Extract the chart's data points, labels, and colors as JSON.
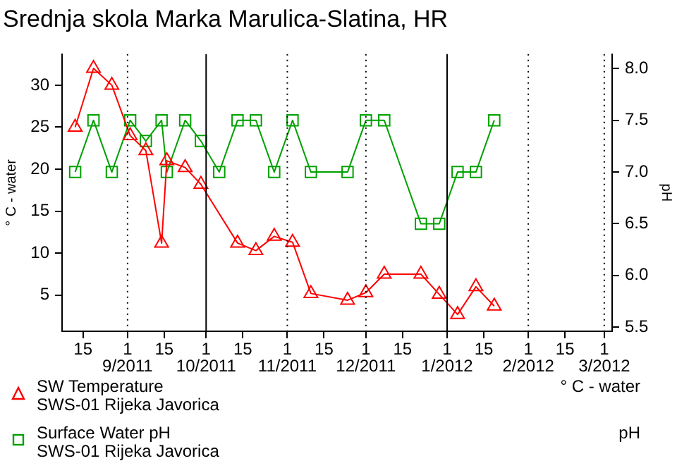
{
  "chart_data": {
    "type": "line",
    "title": "Srednja skola Marka Marulica-Slatina, HR",
    "ylabel": "° C - water",
    "y2label": "pH",
    "xlim": [
      "2011-08-07",
      "2012-03-04"
    ],
    "xticks": [
      {
        "value": "2011-08-15",
        "label": "15"
      },
      {
        "value": "2011-09-01",
        "label": "1\n9/2011"
      },
      {
        "value": "2011-09-15",
        "label": "15"
      },
      {
        "value": "2011-10-01",
        "label": "1\n10/2011"
      },
      {
        "value": "2011-10-15",
        "label": "15"
      },
      {
        "value": "2011-11-01",
        "label": "1\n11/2011"
      },
      {
        "value": "2011-11-15",
        "label": "15"
      },
      {
        "value": "2011-12-01",
        "label": "1\n12/2011"
      },
      {
        "value": "2011-12-15",
        "label": "15"
      },
      {
        "value": "2012-01-01",
        "label": "1\n1/2012"
      },
      {
        "value": "2012-01-15",
        "label": "15"
      },
      {
        "value": "2012-02-01",
        "label": "1\n2/2012"
      },
      {
        "value": "2012-02-15",
        "label": "15"
      },
      {
        "value": "2012-03-01",
        "label": "1\n3/2012"
      }
    ],
    "ylim": [
      0.7,
      33.7
    ],
    "yticks": [
      5,
      10,
      15,
      20,
      25,
      30
    ],
    "y2lim": [
      5.46,
      8.14
    ],
    "y2ticks": [
      {
        "value": 5.5,
        "label": "5.5"
      },
      {
        "value": 6,
        "label": "6.0"
      },
      {
        "value": 6.5,
        "label": "6.5"
      },
      {
        "value": 7,
        "label": "7.0"
      },
      {
        "value": 7.5,
        "label": "7.5"
      },
      {
        "value": 8,
        "label": "8.0"
      }
    ],
    "legend": "bottom",
    "line_style": "solid",
    "ref_lines": [
      {
        "axis": "x",
        "value": "2011-09-01",
        "line_style": "dotted",
        "color": "#000000"
      },
      {
        "axis": "x",
        "value": "2011-10-01",
        "line_style": "solid",
        "color": "#000000"
      },
      {
        "axis": "x",
        "value": "2011-11-01",
        "line_style": "dotted",
        "color": "#000000"
      },
      {
        "axis": "x",
        "value": "2011-12-01",
        "line_style": "dotted",
        "color": "#000000"
      },
      {
        "axis": "x",
        "value": "2012-01-01",
        "line_style": "solid",
        "color": "#000000"
      },
      {
        "axis": "x",
        "value": "2012-02-01",
        "line_style": "dotted",
        "color": "#000000"
      },
      {
        "axis": "x",
        "value": "2012-03-01",
        "line_style": "dotted",
        "color": "#000000"
      }
    ],
    "series": [
      {
        "name": "SW Temperature\nSWS-01 Rijeka Javorica",
        "color": "#ff0000",
        "marker": "triangle",
        "axis": "y",
        "x": [
          "2011-08-12",
          "2011-08-19",
          "2011-08-26",
          "2011-09-02",
          "2011-09-08",
          "2011-09-14",
          "2011-09-16",
          "2011-09-23",
          "2011-09-29",
          "2011-10-13",
          "2011-10-20",
          "2011-10-27",
          "2011-11-03",
          "2011-11-10",
          "2011-11-24",
          "2011-12-01",
          "2011-12-08",
          "2011-12-22",
          "2011-12-29",
          "2012-01-05",
          "2012-01-12",
          "2012-01-19"
        ],
        "values": [
          25,
          32,
          30,
          24,
          22.2,
          11.2,
          21,
          20.2,
          18.2,
          11.2,
          10.3,
          12,
          11.3,
          5.2,
          4.4,
          5.3,
          7.5,
          7.5,
          5.1,
          2.7,
          6,
          3.7
        ]
      },
      {
        "name": "Surface Water pH\nSWS-01 Rijeka Javorica",
        "color": "#00a000",
        "marker": "square",
        "axis": "y2",
        "x": [
          "2011-08-12",
          "2011-08-19",
          "2011-08-26",
          "2011-09-02",
          "2011-09-08",
          "2011-09-14",
          "2011-09-16",
          "2011-09-23",
          "2011-09-29",
          "2011-10-06",
          "2011-10-13",
          "2011-10-20",
          "2011-10-27",
          "2011-11-03",
          "2011-11-10",
          "2011-11-24",
          "2011-12-01",
          "2011-12-08",
          "2011-12-22",
          "2011-12-29",
          "2012-01-05",
          "2012-01-12",
          "2012-01-19"
        ],
        "values": [
          7.0,
          7.5,
          7.0,
          7.5,
          7.3,
          7.5,
          7.0,
          7.5,
          7.3,
          7.0,
          7.5,
          7.5,
          7.0,
          7.5,
          7.0,
          7.0,
          7.5,
          7.5,
          6.5,
          6.5,
          7.0,
          7.0,
          7.5
        ]
      }
    ]
  }
}
